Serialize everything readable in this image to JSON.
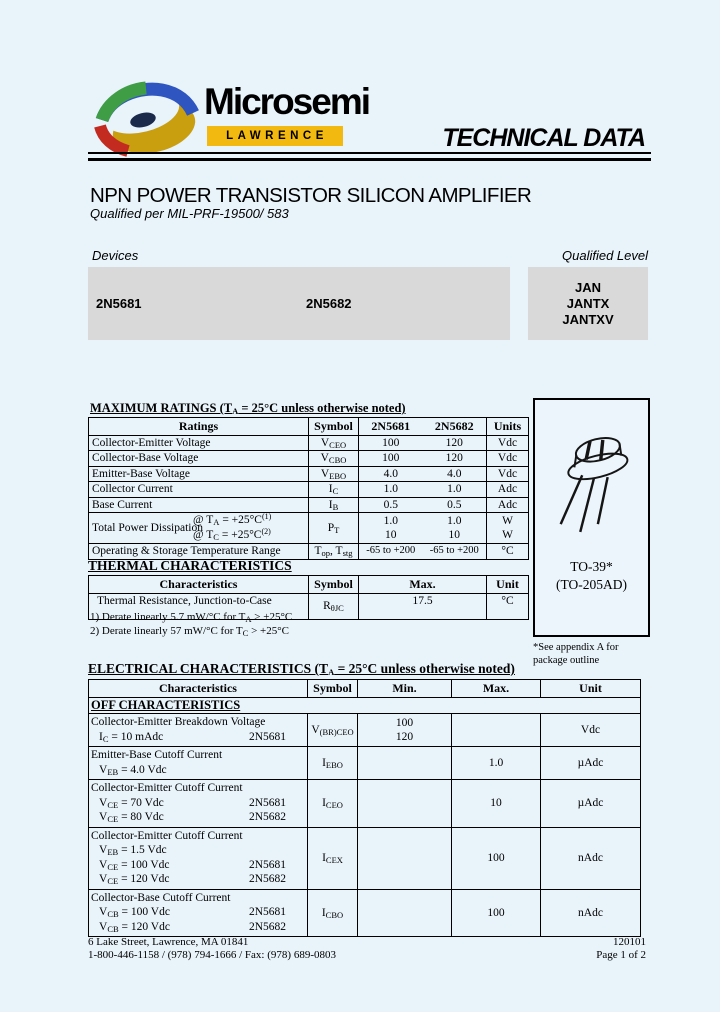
{
  "header": {
    "brand": "Microsemi",
    "brand_sub": "LAWRENCE",
    "doc_type": "TECHNICAL DATA"
  },
  "title": {
    "main": "NPN POWER TRANSISTOR SILICON AMPLIFIER",
    "sub": "Qualified per MIL-PRF-19500/ 583"
  },
  "devices": {
    "label": "Devices",
    "items": [
      "2N5681",
      "2N5682"
    ]
  },
  "qualified": {
    "label": "Qualified Level",
    "levels": [
      "JAN",
      "JANTX",
      "JANTXV"
    ]
  },
  "package": {
    "name": "TO-39*",
    "alt_name": "(TO-205AD)",
    "note_line1": "*See appendix A for",
    "note_line2": "package outline"
  },
  "max_ratings": {
    "heading_html": "MAXIMUM RATINGS (T<sub>A</sub> = 25°C unless otherwise noted)",
    "columns": [
      "Ratings",
      "Symbol",
      "2N5681",
      "2N5682",
      "Units"
    ],
    "rows": [
      {
        "rating": "Collector-Emitter Voltage",
        "symbol_html": "V<sub>CEO</sub>",
        "v1": "100",
        "v2": "120",
        "units": "Vdc"
      },
      {
        "rating": "Collector-Base Voltage",
        "symbol_html": "V<sub>CBO</sub>",
        "v1": "100",
        "v2": "120",
        "units": "Vdc"
      },
      {
        "rating": "Emitter-Base Voltage",
        "symbol_html": "V<sub>EBO</sub>",
        "v1": "4.0",
        "v2": "4.0",
        "units": "Vdc"
      },
      {
        "rating": "Collector Current",
        "symbol_html": "I<sub>C</sub>",
        "v1": "1.0",
        "v2": "1.0",
        "units": "Adc"
      },
      {
        "rating": "Base Current",
        "symbol_html": "I<sub>B</sub>",
        "v1": "0.5",
        "v2": "0.5",
        "units": "Adc"
      }
    ],
    "power_row": {
      "rating": "Total Power Dissipation",
      "cond1_html": "@ T<sub>A</sub> = +25°C<sup>(1)</sup>",
      "cond2_html": "@ T<sub>C</sub> = +25°C<sup>(2)</sup>",
      "symbol_html": "P<sub>T</sub>",
      "v1a": "1.0",
      "v1b": "10",
      "v2a": "1.0",
      "v2b": "10",
      "units_a": "W",
      "units_b": "W"
    },
    "temp_row": {
      "rating": "Operating & Storage Temperature Range",
      "symbol_html": "T<sub>op</sub>, T<sub>stg</sub>",
      "v1": "-65 to +200",
      "v2": "-65 to +200",
      "units": "°C"
    }
  },
  "thermal": {
    "heading": "THERMAL CHARACTERISTICS",
    "columns": [
      "Characteristics",
      "Symbol",
      "Max.",
      "Unit"
    ],
    "row": {
      "char": "Thermal Resistance, Junction-to-Case",
      "symbol_html": "R<sub>θJC</sub>",
      "max": "17.5",
      "unit": "°C"
    },
    "notes_html": [
      "1) Derate linearly 5.7 mW/°C for T<sub>A</sub> > +25°C",
      "2) Derate linearly 57 mW/°C for T<sub>C</sub> > +25°C"
    ]
  },
  "electrical": {
    "heading_html": "ELECTRICAL CHARACTERISTICS (T<sub>A</sub> = 25°C unless otherwise noted)",
    "columns": [
      "Characteristics",
      "Symbol",
      "Min.",
      "Max.",
      "Unit"
    ],
    "section": "OFF CHARACTERISTICS",
    "rows": [
      {
        "name": "Collector-Emitter Breakdown Voltage",
        "cond1_html": "I<sub>C</sub> = 10 mAdc",
        "dev1": "2N5681",
        "cond2_html": "",
        "dev2": "2N5682",
        "symbol_html": "V<sub>(BR)CEO</sub>",
        "min1": "100",
        "min2": "120",
        "max": "",
        "unit": "Vdc"
      },
      {
        "name": "Emitter-Base Cutoff Current",
        "cond1_html": "V<sub>EB</sub> = 4.0 Vdc",
        "dev1": "",
        "symbol_html": "I<sub>EBO</sub>",
        "min": "",
        "max": "1.0",
        "unit": "µAdc"
      },
      {
        "name": "Collector-Emitter Cutoff Current",
        "cond1_html": "V<sub>CE</sub> = 70 Vdc",
        "dev1": "2N5681",
        "cond2_html": "V<sub>CE</sub> = 80 Vdc",
        "dev2": "2N5682",
        "symbol_html": "I<sub>CEO</sub>",
        "min": "",
        "max": "10",
        "unit": "µAdc"
      },
      {
        "name": "Collector-Emitter Cutoff Current",
        "cond1_html": "V<sub>EB</sub> = 1.5 Vdc",
        "dev1": "",
        "cond2_html": "V<sub>CE</sub> = 100 Vdc",
        "dev2": "2N5681",
        "cond3_html": "V<sub>CE</sub> = 120 Vdc",
        "dev3": "2N5682",
        "symbol_html": "I<sub>CEX</sub>",
        "min": "",
        "max": "100",
        "unit": "nAdc"
      },
      {
        "name": "Collector-Base Cutoff Current",
        "cond1_html": "V<sub>CB</sub> = 100 Vdc",
        "dev1": "2N5681",
        "cond2_html": "V<sub>CB</sub> = 120 Vdc",
        "dev2": "2N5682",
        "symbol_html": "I<sub>CBO</sub>",
        "min": "",
        "max": "100",
        "unit": "nAdc"
      }
    ]
  },
  "footer": {
    "address": "6 Lake Street, Lawrence, MA  01841",
    "doc_number": "120101",
    "phone": "1-800-446-1158 / (978) 794-1666 / Fax: (978) 689-0803",
    "page": "Page 1 of 2"
  },
  "colors": {
    "page_bg": "#e8f3fa",
    "box_gray": "#d9d9d9",
    "brand_yellow": "#f2ba10",
    "logo_blue": "#2e55c0",
    "logo_green": "#3f9d45",
    "logo_red": "#c32b20",
    "logo_gold": "#c99e0f"
  }
}
